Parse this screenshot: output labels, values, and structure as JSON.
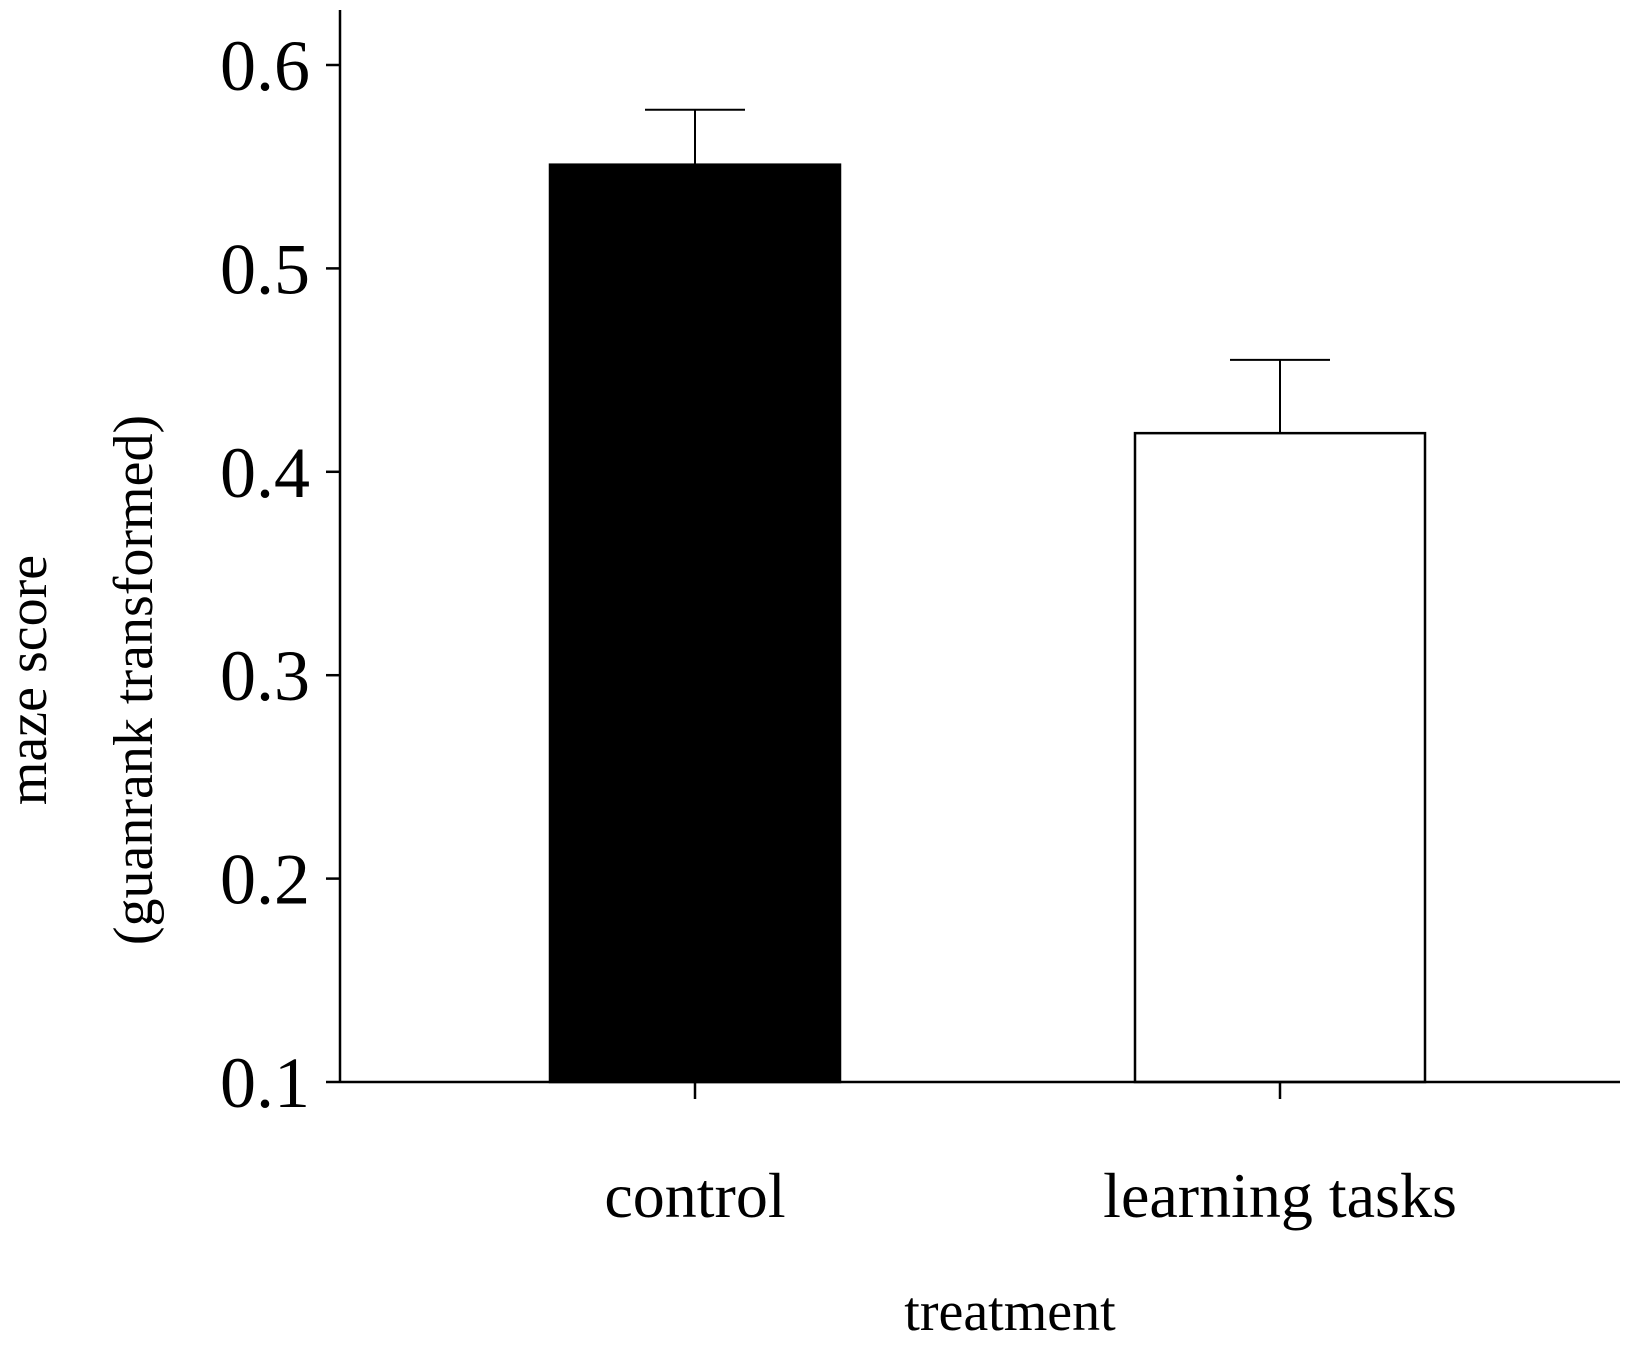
{
  "chart_data": {
    "type": "bar",
    "categories": [
      "control",
      "learning tasks"
    ],
    "values": [
      0.551,
      0.419
    ],
    "errors": [
      0.027,
      0.036
    ],
    "colors": [
      "#000000",
      "#ffffff"
    ],
    "xlabel": "treatment",
    "ylabel_line1": "maze score",
    "ylabel_line2": "(guanrank transformed)",
    "ylim": [
      0.1,
      0.625
    ],
    "yticks": [
      0.1,
      0.2,
      0.3,
      0.4,
      0.5,
      0.6
    ],
    "ytick_labels": [
      "0.1",
      "0.2",
      "0.3",
      "0.4",
      "0.5",
      "0.6"
    ],
    "grid": false,
    "legend": "none"
  }
}
